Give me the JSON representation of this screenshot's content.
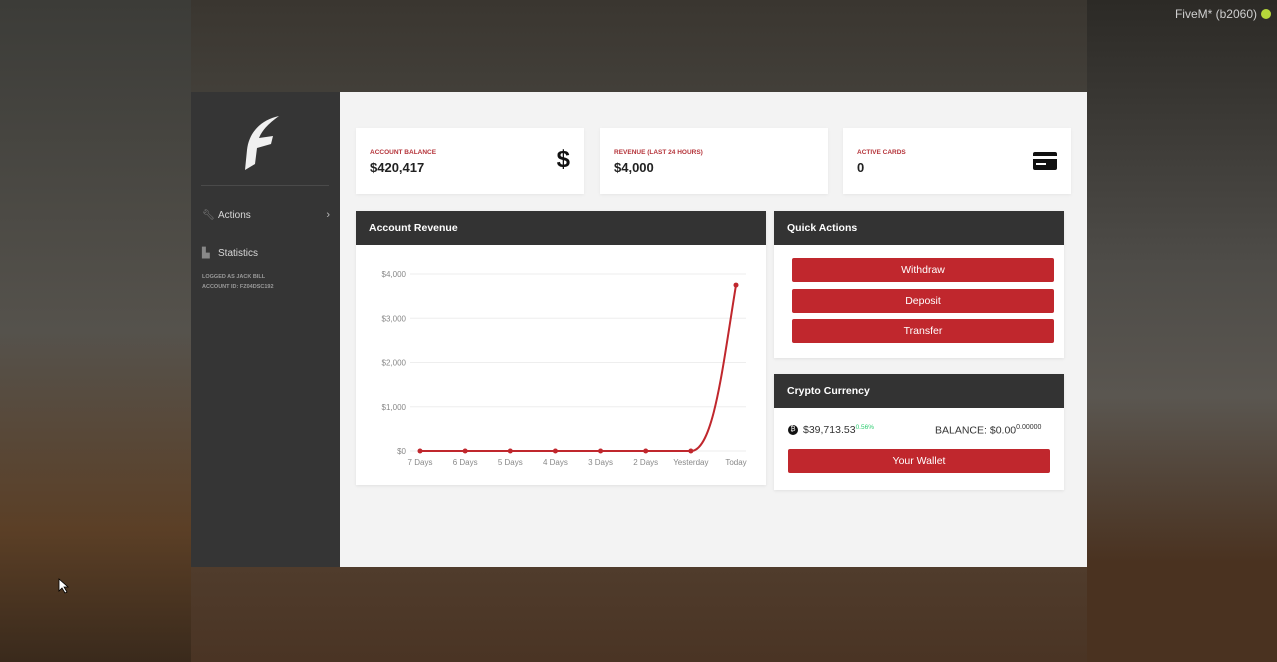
{
  "overlay": {
    "client_label": "FiveM* (b2060)"
  },
  "sidebar": {
    "items": [
      {
        "label": "Actions",
        "icon": "wrench-icon"
      },
      {
        "label": "Statistics",
        "icon": "bar-chart-icon"
      }
    ],
    "logged_as": "LOGGED AS JACK BILL",
    "account_id": "ACCOUNT ID: FZ04DSC192"
  },
  "stats": [
    {
      "label": "ACCOUNT BALANCE",
      "value": "$420,417",
      "icon": "dollar-icon"
    },
    {
      "label": "REVENUE (LAST 24 HOURS)",
      "value": "$4,000"
    },
    {
      "label": "ACTIVE CARDS",
      "value": "0",
      "icon": "credit-card-icon"
    }
  ],
  "revenue": {
    "title": "Account Revenue"
  },
  "quick_actions": {
    "title": "Quick Actions",
    "buttons": [
      "Withdraw",
      "Deposit",
      "Transfer"
    ]
  },
  "crypto": {
    "title": "Crypto Currency",
    "price": "$39,713.53",
    "change": "0.56%",
    "balance_label": "BALANCE: $0.00",
    "balance_fraction": "0.00000",
    "wallet_button": "Your Wallet",
    "change_color": "#2ecc71"
  },
  "colors": {
    "accent": "#c0272d",
    "header": "#333333",
    "sidebar": "#353535"
  },
  "chart_data": {
    "type": "line",
    "categories": [
      "7 Days",
      "6 Days",
      "5 Days",
      "4 Days",
      "3 Days",
      "2 Days",
      "Yesterday",
      "Today"
    ],
    "values": [
      0,
      0,
      0,
      0,
      0,
      0,
      0,
      3750
    ],
    "yticks": [
      "$0",
      "$1,000",
      "$2,000",
      "$3,000",
      "$4,000"
    ],
    "ylim": [
      0,
      4000
    ],
    "grid": true,
    "color": "#c0272d"
  }
}
